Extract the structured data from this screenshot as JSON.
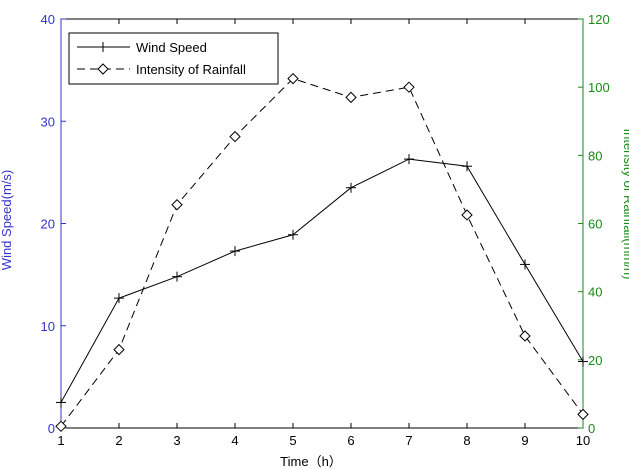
{
  "chart_data": {
    "type": "line",
    "xlabel": "Time（h）",
    "ylabel_left": "Wind Speed(m/s)",
    "ylabel_right": "Intensity of Rainfall(mm/h)",
    "xlim": [
      1,
      10
    ],
    "ylim_left": [
      0,
      40
    ],
    "ylim_right": [
      0,
      120
    ],
    "x_ticks": [
      1,
      2,
      3,
      4,
      5,
      6,
      7,
      8,
      9,
      10
    ],
    "y_left_ticks": [
      0,
      10,
      20,
      30,
      40
    ],
    "y_right_ticks": [
      0,
      20,
      40,
      60,
      80,
      100,
      120
    ],
    "x": [
      1,
      2,
      3,
      4,
      5,
      6,
      7,
      8,
      9,
      10
    ],
    "series": [
      {
        "name": "Wind Speed",
        "axis": "left",
        "line_style": "solid",
        "marker": "plus",
        "values": [
          2.5,
          12.7,
          14.8,
          17.3,
          18.9,
          23.5,
          26.3,
          25.6,
          16.0,
          6.5
        ]
      },
      {
        "name": "Intensity of Rainfall",
        "axis": "right",
        "line_style": "dashed",
        "marker": "diamond",
        "values": [
          0.5,
          23,
          65.5,
          85.5,
          102.5,
          97,
          100,
          62.5,
          27,
          4
        ]
      }
    ],
    "grid": false,
    "legend_position": "top-left",
    "colors": {
      "left_axis": "#3333cc",
      "right_axis": "#1a8a1a",
      "lines": "#000000"
    }
  }
}
